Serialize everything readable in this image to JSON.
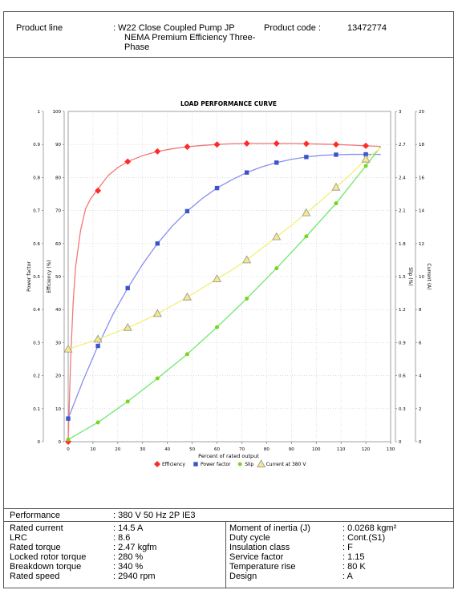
{
  "header": {
    "product_line_label": "Product line",
    "product_line_value_1": ": W22 Close Coupled Pump JP",
    "product_line_value_2": "NEMA Premium Efficiency Three-",
    "product_line_value_3": "Phase",
    "product_code_label": "Product code :",
    "product_code_value": "13472774"
  },
  "chart_data": {
    "type": "line",
    "title": "LOAD PERFORMANCE CURVE",
    "xlabel": "Percent of rated output",
    "x_ticks": [
      "0",
      "10",
      "20",
      "30",
      "40",
      "50",
      "60",
      "70",
      "80",
      "90",
      "100",
      "110",
      "120",
      "130"
    ],
    "xlim": [
      0,
      130
    ],
    "left_axes": [
      {
        "label": "Power factor",
        "ticks": [
          "0",
          "0.1",
          "0.2",
          "0.3",
          "0.4",
          "0.5",
          "0.6",
          "0.7",
          "0.8",
          "0.9",
          "1"
        ],
        "range": [
          0,
          1
        ]
      },
      {
        "label": "Efficiency (%)",
        "ticks": [
          "0",
          "10",
          "20",
          "30",
          "40",
          "50",
          "60",
          "70",
          "80",
          "90",
          "100"
        ],
        "range": [
          0,
          100
        ]
      }
    ],
    "right_axes": [
      {
        "label": "Slip (%)",
        "ticks": [
          "0",
          "0.3",
          "0.6",
          "0.9",
          "1.2",
          "1.5",
          "1.8",
          "2.1",
          "2.4",
          "2.7",
          "3"
        ],
        "range": [
          0,
          3
        ]
      },
      {
        "label": "Current (A)",
        "ticks": [
          "0",
          "2",
          "4",
          "6",
          "8",
          "10",
          "12",
          "14",
          "16",
          "18",
          "20"
        ],
        "range": [
          0,
          20
        ]
      }
    ],
    "grid": true,
    "legend_position": "bottom",
    "series": [
      {
        "name": "Efficiency",
        "color": "#ff2b2b",
        "line_color": "#f27878",
        "marker": "diamond",
        "scale": "efficiency",
        "x": [
          0,
          12,
          24,
          36,
          48,
          60,
          72,
          84,
          96,
          108,
          120
        ],
        "y": [
          0,
          76,
          84.8,
          87.9,
          89.3,
          90,
          90.3,
          90.3,
          90.2,
          90,
          89.6
        ],
        "curve_x": [
          0,
          1,
          2,
          3,
          5,
          7,
          9,
          12,
          16,
          20,
          24,
          30,
          36,
          42,
          48,
          54,
          60,
          66,
          72,
          78,
          84,
          90,
          96,
          102,
          108,
          114,
          120,
          126
        ],
        "curve_y": [
          0,
          25,
          42,
          53,
          64,
          70.5,
          73.5,
          76.5,
          80.5,
          83,
          84.8,
          86.6,
          87.9,
          88.7,
          89.3,
          89.7,
          90,
          90.2,
          90.3,
          90.3,
          90.3,
          90.3,
          90.2,
          90.1,
          90,
          89.8,
          89.6,
          89.4
        ]
      },
      {
        "name": "Power factor",
        "color": "#3a55cc",
        "line_color": "#8a8ef0",
        "marker": "square",
        "scale": "pf",
        "x": [
          0,
          12,
          24,
          36,
          48,
          60,
          72,
          84,
          96,
          108,
          120
        ],
        "y": [
          0.07,
          0.29,
          0.465,
          0.6,
          0.698,
          0.768,
          0.815,
          0.845,
          0.862,
          0.869,
          0.87
        ],
        "curve_x": [
          0,
          6,
          12,
          18,
          24,
          30,
          36,
          42,
          48,
          54,
          60,
          66,
          72,
          78,
          84,
          90,
          96,
          102,
          108,
          114,
          120,
          126
        ],
        "curve_y": [
          0.07,
          0.185,
          0.29,
          0.385,
          0.465,
          0.537,
          0.6,
          0.653,
          0.698,
          0.736,
          0.768,
          0.793,
          0.815,
          0.832,
          0.845,
          0.855,
          0.862,
          0.867,
          0.869,
          0.87,
          0.87,
          0.87
        ]
      },
      {
        "name": "Slip",
        "color": "#7ed321",
        "line_color": "#6ee86e",
        "marker": "circle",
        "scale": "slip",
        "x": [
          0,
          12,
          24,
          36,
          48,
          60,
          72,
          84,
          96,
          108,
          120
        ],
        "y": [
          0.02,
          0.175,
          0.365,
          0.575,
          0.795,
          1.04,
          1.3,
          1.575,
          1.865,
          2.165,
          2.505
        ],
        "curve_x": [
          0,
          12,
          24,
          36,
          48,
          60,
          72,
          84,
          96,
          108,
          120,
          126
        ],
        "curve_y": [
          0.02,
          0.175,
          0.365,
          0.575,
          0.795,
          1.04,
          1.3,
          1.575,
          1.865,
          2.165,
          2.505,
          2.68
        ]
      },
      {
        "name": "Current at 380 V",
        "color": "#9b9b9b",
        "line_color": "#f0f07a",
        "marker": "triangle",
        "scale": "current",
        "x": [
          0,
          12,
          24,
          36,
          48,
          60,
          72,
          84,
          96,
          108,
          120
        ],
        "y": [
          5.6,
          6.2,
          6.9,
          7.75,
          8.75,
          9.85,
          11.0,
          12.4,
          13.85,
          15.4,
          17.1
        ],
        "curve_x": [
          0,
          6,
          12,
          18,
          24,
          30,
          36,
          42,
          48,
          54,
          60,
          66,
          72,
          78,
          84,
          90,
          96,
          102,
          108,
          114,
          120,
          126
        ],
        "curve_y": [
          5.6,
          5.9,
          6.2,
          6.55,
          6.9,
          7.3,
          7.75,
          8.25,
          8.75,
          9.3,
          9.85,
          10.4,
          11.0,
          11.7,
          12.4,
          13.1,
          13.85,
          14.6,
          15.4,
          16.2,
          17.1,
          17.8
        ]
      }
    ]
  },
  "specs": {
    "performance_label": "Performance",
    "performance_value": ": 380 V 50 Hz 2P IE3",
    "left": [
      {
        "label": "Rated current",
        "value": ": 14.5 A"
      },
      {
        "label": "LRC",
        "value": ": 8.6"
      },
      {
        "label": "Rated torque",
        "value": ": 2.47 kgfm"
      },
      {
        "label": "Locked rotor torque",
        "value": ": 280 %"
      },
      {
        "label": "Breakdown torque",
        "value": ": 340 %"
      },
      {
        "label": "Rated speed",
        "value": ": 2940 rpm"
      }
    ],
    "right": [
      {
        "label": "Moment of inertia (J)",
        "value": ": 0.0268 kgm²"
      },
      {
        "label": "Duty cycle",
        "value": ": Cont.(S1)"
      },
      {
        "label": "Insulation class",
        "value": ": F"
      },
      {
        "label": "Service factor",
        "value": ": 1.15"
      },
      {
        "label": "Temperature rise",
        "value": ": 80 K"
      },
      {
        "label": "Design",
        "value": ": A"
      }
    ]
  }
}
